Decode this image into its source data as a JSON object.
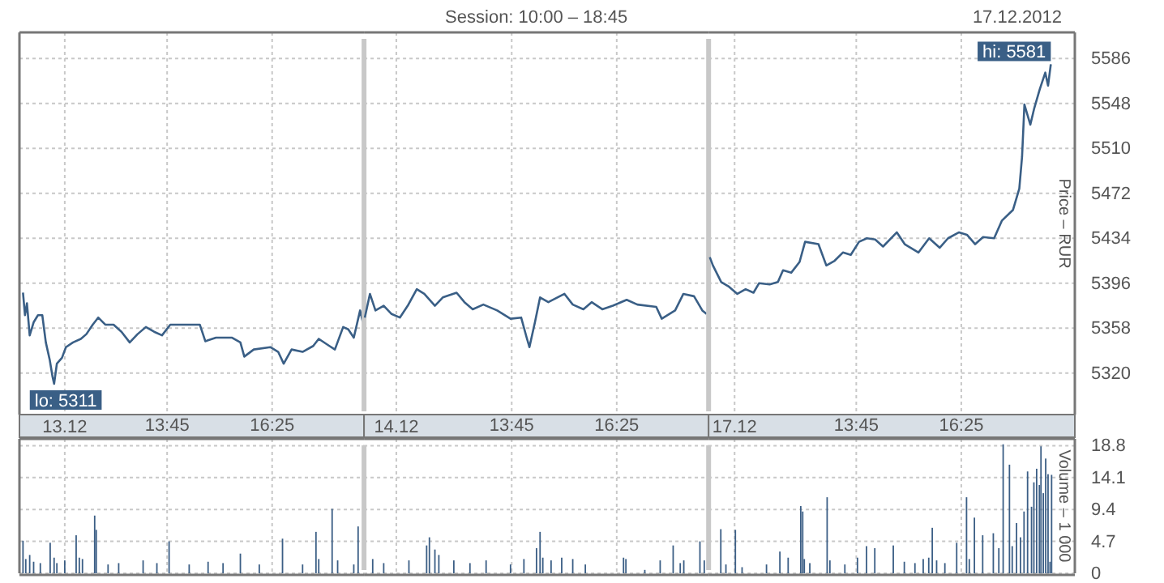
{
  "chart_data": [
    {
      "type": "line",
      "xlabel": "13.12",
      "color": "#3a5f86",
      "grid": true,
      "line_style": "solid",
      "tick_labels": "x",
      "annotations": [
        {
          "text": "lo: 5311",
          "x": 10.88,
          "y": 5311
        }
      ],
      "xlim": [
        10,
        18.75
      ],
      "ylim": [
        5285,
        5608
      ],
      "xticks": [
        {
          "value": 11.15,
          "label": null
        },
        {
          "value": 13.75,
          "label": "13:45"
        },
        {
          "value": 16.4167,
          "label": "16:25"
        }
      ],
      "yticks": [
        5320,
        5358,
        5396,
        5434,
        5472,
        5510,
        5548,
        5586
      ],
      "x": [
        10.09,
        10.14,
        10.19,
        10.26,
        10.36,
        10.47,
        10.58,
        10.67,
        10.77,
        10.84,
        10.88,
        10.95,
        11.08,
        11.18,
        11.36,
        11.56,
        11.7,
        11.86,
        12.0,
        12.18,
        12.39,
        12.59,
        12.8,
        13.0,
        13.21,
        13.42,
        13.62,
        13.83,
        14.17,
        14.58,
        14.72,
        14.99,
        15.4,
        15.61,
        15.71,
        15.95,
        16.37,
        16.57,
        16.71,
        16.91,
        17.19,
        17.46,
        17.6,
        17.87,
        18.01,
        18.22,
        18.35,
        18.49,
        18.65,
        18.72
      ],
      "values": [
        5388,
        5369,
        5379,
        5352,
        5363,
        5369,
        5369,
        5346,
        5331,
        5317,
        5311,
        5328,
        5333,
        5342,
        5346,
        5349,
        5353,
        5361,
        5367,
        5361,
        5361,
        5355,
        5346,
        5353,
        5359,
        5355,
        5352,
        5361,
        5361,
        5361,
        5347,
        5350,
        5350,
        5346,
        5334,
        5340,
        5342,
        5338,
        5328,
        5340,
        5338,
        5343,
        5349,
        5343,
        5340,
        5359,
        5357,
        5350,
        5373,
        5363
      ]
    },
    {
      "type": "line",
      "title": "Session: 10:00 – 18:45",
      "xlabel": "14.12",
      "color": "#3a5f86",
      "grid": true,
      "line_style": "solid",
      "tick_labels": "x",
      "xlim": [
        10,
        18.75
      ],
      "ylim": [
        5285,
        5608
      ],
      "xticks": [
        {
          "value": 10.82,
          "label": null
        },
        {
          "value": 13.75,
          "label": "13:45"
        },
        {
          "value": 16.4167,
          "label": "16:25"
        }
      ],
      "yticks": [
        5320,
        5358,
        5396,
        5434,
        5472,
        5510,
        5548,
        5586
      ],
      "x": [
        10.02,
        10.15,
        10.29,
        10.5,
        10.7,
        10.91,
        11.11,
        11.34,
        11.53,
        11.8,
        12.0,
        12.35,
        12.55,
        12.76,
        13.03,
        13.38,
        13.72,
        13.99,
        14.13,
        14.2,
        14.34,
        14.47,
        14.68,
        15.09,
        15.3,
        15.57,
        15.78,
        16.05,
        16.32,
        16.67,
        16.94,
        17.42,
        17.56,
        17.9,
        18.11,
        18.38,
        18.59,
        18.7
      ],
      "values": [
        5367,
        5387,
        5373,
        5377,
        5370,
        5367,
        5377,
        5391,
        5387,
        5377,
        5384,
        5388,
        5380,
        5374,
        5378,
        5373,
        5366,
        5367,
        5350,
        5342,
        5363,
        5384,
        5380,
        5387,
        5378,
        5374,
        5380,
        5374,
        5377,
        5382,
        5378,
        5376,
        5366,
        5373,
        5387,
        5385,
        5373,
        5370
      ]
    },
    {
      "type": "line",
      "xlabel": "17.12",
      "ylabel": "Price – RUR",
      "color": "#3a5f86",
      "grid": true,
      "line_style": "solid",
      "annotations": [
        "17.12.2012",
        {
          "text": "hi: 5581",
          "x": 18.69,
          "y": 5581
        }
      ],
      "xlim": [
        10,
        19.3
      ],
      "ylim": [
        5285,
        5608
      ],
      "xticks": [
        {
          "value": 10.66,
          "label": null
        },
        {
          "value": 13.75,
          "label": "13:45"
        },
        {
          "value": 16.4167,
          "label": "16:25"
        }
      ],
      "yticks": [
        5320,
        5358,
        5396,
        5434,
        5472,
        5510,
        5548,
        5586
      ],
      "x": [
        10.03,
        10.11,
        10.32,
        10.52,
        10.73,
        10.94,
        11.14,
        11.28,
        11.55,
        11.76,
        11.89,
        12.1,
        12.31,
        12.45,
        12.79,
        12.99,
        13.2,
        13.41,
        13.61,
        13.82,
        14.02,
        14.23,
        14.43,
        14.78,
        14.98,
        15.33,
        15.6,
        15.87,
        16.08,
        16.36,
        16.56,
        16.77,
        16.97,
        17.25,
        17.45,
        17.73,
        17.89,
        17.96,
        18.02,
        18.17,
        18.27,
        18.41,
        18.55,
        18.62,
        18.69
      ],
      "values": [
        5418,
        5411,
        5397,
        5393,
        5387,
        5391,
        5388,
        5396,
        5395,
        5397,
        5407,
        5405,
        5414,
        5431,
        5429,
        5411,
        5415,
        5422,
        5420,
        5431,
        5434,
        5433,
        5427,
        5439,
        5429,
        5422,
        5434,
        5426,
        5434,
        5439,
        5437,
        5429,
        5435,
        5434,
        5449,
        5458,
        5476,
        5503,
        5547,
        5530,
        5544,
        5560,
        5574,
        5563,
        5581
      ]
    },
    {
      "type": "bar",
      "color": "#3b5e85",
      "grid": true,
      "tick_labels": false,
      "xlim": [
        10,
        18.75
      ],
      "ylim": [
        0,
        19.8
      ],
      "xticks": [
        {
          "value": 11.15,
          "label": null
        },
        {
          "value": 13.75,
          "label": null
        },
        {
          "value": 16.4167,
          "label": null
        }
      ],
      "yticks": [
        0,
        4.7,
        9.4,
        14.1,
        18.8
      ],
      "x": [
        10.09,
        10.16,
        10.26,
        10.36,
        10.53,
        10.78,
        10.88,
        10.95,
        11.15,
        11.44,
        11.52,
        11.6,
        11.91,
        11.95,
        12.25,
        12.52,
        13.14,
        13.49,
        13.8,
        14.31,
        14.79,
        15.17,
        15.61,
        16.09,
        16.68,
        17.19,
        17.53,
        17.6,
        17.94,
        18.08,
        18.49,
        18.6
      ],
      "values": [
        4.8,
        2.1,
        2.7,
        1.7,
        1.5,
        4.5,
        2.3,
        1.5,
        1.9,
        5.6,
        2.3,
        2.1,
        8.5,
        6.4,
        1.3,
        1.5,
        1.9,
        1.5,
        4.7,
        1.3,
        1.7,
        1.5,
        2.9,
        1.3,
        5.1,
        1.3,
        6.1,
        2.1,
        9.5,
        1.9,
        1.3,
        6.9
      ]
    },
    {
      "type": "bar",
      "color": "#3b5e85",
      "grid": true,
      "tick_labels": false,
      "xlim": [
        10,
        18.75
      ],
      "ylim": [
        0,
        19.8
      ],
      "xticks": [
        {
          "value": 10.82,
          "label": null
        },
        {
          "value": 13.75,
          "label": null
        },
        {
          "value": 16.4167,
          "label": null
        }
      ],
      "yticks": [
        0,
        4.7,
        9.4,
        14.1,
        18.8
      ],
      "x": [
        10.22,
        10.5,
        11.14,
        11.59,
        11.66,
        11.8,
        11.9,
        12.28,
        12.69,
        13.1,
        13.72,
        14.06,
        14.38,
        14.47,
        14.54,
        14.75,
        15.02,
        15.3,
        15.62,
        16.59,
        16.65,
        17.13,
        17.52,
        17.85,
        18.03,
        18.12,
        18.53,
        18.64
      ],
      "values": [
        2.1,
        1.5,
        1.9,
        4.1,
        5.3,
        3.5,
        2.7,
        1.9,
        1.5,
        1.9,
        1.3,
        2.1,
        3.7,
        6.1,
        2.3,
        1.9,
        2.3,
        2.1,
        1.3,
        2.3,
        2.1,
        0.5,
        1.9,
        4.1,
        1.5,
        1.9,
        4.7,
        1.9
      ]
    },
    {
      "type": "bar",
      "ylabel": "Volume – 1 000",
      "color": "#3b5e85",
      "grid": true,
      "tick_labels": "y",
      "xlim": [
        10,
        19.3
      ],
      "ylim": [
        0,
        19.8
      ],
      "xticks": [
        {
          "value": 10.66,
          "label": null
        },
        {
          "value": 13.75,
          "label": null
        },
        {
          "value": 16.4167,
          "label": null
        }
      ],
      "yticks": [
        0,
        4.7,
        9.4,
        14.1,
        18.8
      ],
      "x": [
        10.31,
        10.44,
        10.68,
        10.85,
        11.47,
        11.81,
        12.02,
        12.34,
        12.39,
        12.43,
        12.57,
        13.01,
        13.08,
        13.46,
        13.78,
        14.01,
        14.22,
        14.69,
        14.97,
        15.24,
        15.45,
        15.59,
        15.68,
        15.79,
        16.0,
        16.3,
        16.55,
        16.62,
        16.75,
        16.96,
        17.23,
        17.37,
        17.48,
        17.64,
        17.71,
        17.82,
        17.92,
        18.01,
        18.1,
        18.2,
        18.26,
        18.33,
        18.4,
        18.44,
        18.5,
        18.56,
        18.62,
        18.67,
        18.71
      ],
      "values": [
        6.5,
        1.3,
        6.4,
        0.9,
        1.3,
        3.2,
        2.3,
        9.9,
        9.1,
        2.1,
        1.5,
        11.2,
        1.9,
        1.3,
        2.3,
        4.0,
        3.7,
        4.1,
        1.7,
        1.5,
        2.1,
        2.3,
        6.7,
        1.9,
        1.5,
        4.5,
        11.2,
        2.1,
        8.2,
        5.6,
        5.9,
        3.7,
        19.0,
        16.0,
        4.0,
        7.4,
        5.3,
        9.1,
        15.0,
        9.8,
        13.4,
        15.4,
        13.0,
        18.7,
        11.8,
        16.9,
        14.6,
        1.7,
        14.5
      ]
    }
  ]
}
